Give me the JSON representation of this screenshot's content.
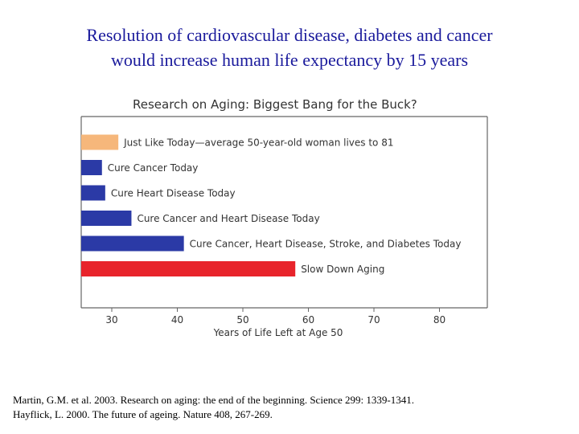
{
  "slide": {
    "title_lines": [
      "Resolution of cardiovascular disease, diabetes and cancer",
      "would increase human life expectancy by 15 years"
    ],
    "references": [
      "Martin, G.M. et al. 2003. Research on aging: the end of the beginning. Science 299: 1339-1341.",
      "Hayflick, L. 2000. The future of ageing. Nature 408, 267-269."
    ]
  },
  "chart_data": {
    "type": "bar",
    "orientation": "horizontal",
    "title": "Research on Aging: Biggest Bang for the Buck?",
    "xlabel": "Years of Life Left at Age 50",
    "ylabel": "",
    "xlim": [
      25,
      85
    ],
    "xticks": [
      30,
      40,
      50,
      60,
      70,
      80
    ],
    "grid": false,
    "categories": [
      "Just Like Today—average 50-year-old woman lives to 81",
      "Cure Cancer Today",
      "Cure Heart Disease Today",
      "Cure Cancer and Heart Disease Today",
      "Cure Cancer, Heart Disease, Stroke, and Diabetes Today",
      "Slow Down Aging"
    ],
    "values": [
      31,
      28.5,
      29,
      33,
      41,
      58
    ],
    "colors": [
      "#f6b77b",
      "#2b3aa6",
      "#2b3aa6",
      "#2b3aa6",
      "#2b3aa6",
      "#e8242b"
    ]
  }
}
